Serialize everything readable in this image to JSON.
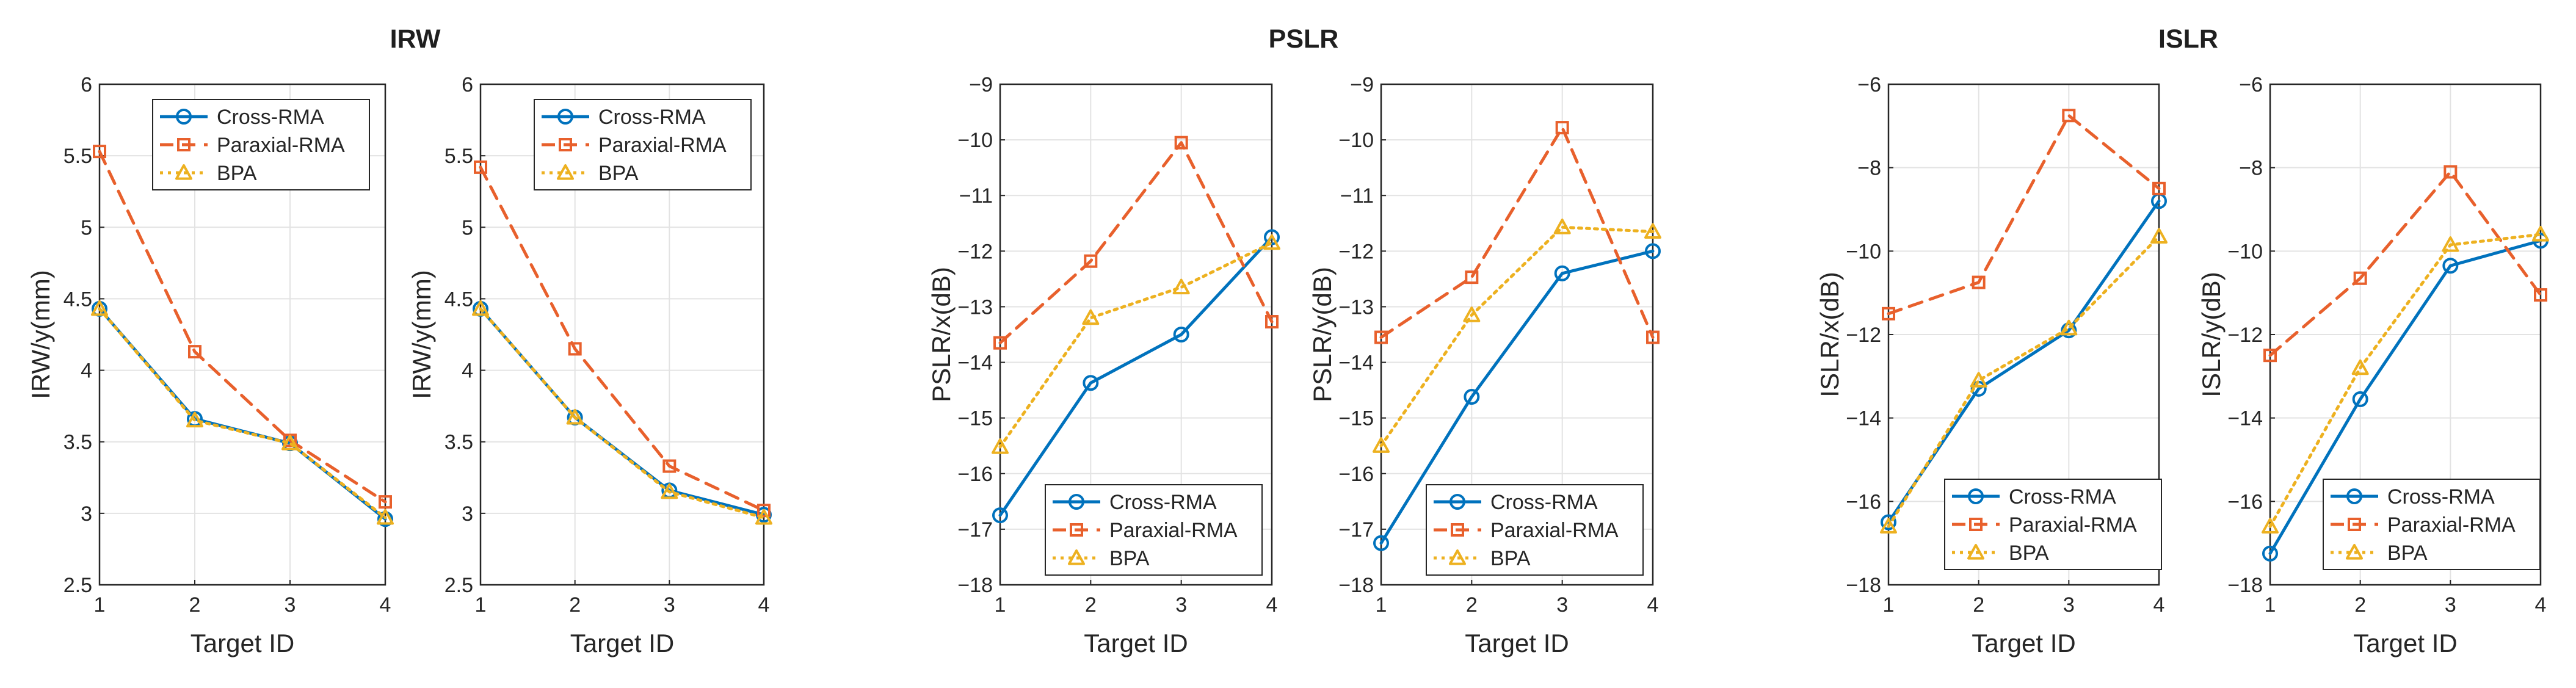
{
  "figure": {
    "group_titles": [
      "IRW",
      "PSLR",
      "ISLR"
    ],
    "colors": {
      "cross": "#0072BD",
      "paraxial": "#E8602C",
      "bpa": "#EDB120",
      "axis": "#262626",
      "grid": "#e3e3e3"
    },
    "legend_labels": [
      "Cross-RMA",
      "Paraxial-RMA",
      "BPA"
    ]
  },
  "chart_data": [
    {
      "type": "line",
      "id": "irw-x",
      "xlabel": "Target ID",
      "ylabel": "IRW/y(mm)",
      "categories": [
        "1",
        "2",
        "3",
        "4"
      ],
      "xticks": [
        "1",
        "2",
        "3",
        "4"
      ],
      "yticks": [
        "2.5",
        "3",
        "3.5",
        "4",
        "4.5",
        "5",
        "5.5",
        "6"
      ],
      "ylim": [
        2.5,
        6
      ],
      "grid": true,
      "legend_position": "top-right",
      "series": [
        {
          "name": "Cross-RMA",
          "values": [
            4.43,
            3.66,
            3.49,
            2.96
          ]
        },
        {
          "name": "Paraxial-RMA",
          "values": [
            5.53,
            4.13,
            3.51,
            3.08
          ]
        },
        {
          "name": "BPA",
          "values": [
            4.43,
            3.65,
            3.49,
            2.97
          ]
        }
      ]
    },
    {
      "type": "line",
      "id": "irw-y",
      "xlabel": "Target ID",
      "ylabel": "IRW/y(mm)",
      "categories": [
        "1",
        "2",
        "3",
        "4"
      ],
      "xticks": [
        "1",
        "2",
        "3",
        "4"
      ],
      "yticks": [
        "2.5",
        "3",
        "3.5",
        "4",
        "4.5",
        "5",
        "5.5",
        "6"
      ],
      "ylim": [
        2.5,
        6
      ],
      "grid": true,
      "legend_position": "top-right",
      "series": [
        {
          "name": "Cross-RMA",
          "values": [
            4.43,
            3.67,
            3.16,
            2.99
          ]
        },
        {
          "name": "Paraxial-RMA",
          "values": [
            5.42,
            4.15,
            3.33,
            3.02
          ]
        },
        {
          "name": "BPA",
          "values": [
            4.43,
            3.67,
            3.15,
            2.97
          ]
        }
      ]
    },
    {
      "type": "line",
      "id": "pslr-x",
      "xlabel": "Target ID",
      "ylabel": "PSLR/x(dB)",
      "categories": [
        "1",
        "2",
        "3",
        "4"
      ],
      "xticks": [
        "1",
        "2",
        "3",
        "4"
      ],
      "yticks": [
        "−18",
        "−17",
        "−16",
        "−15",
        "−14",
        "−13",
        "−12",
        "−11",
        "−10",
        "−9"
      ],
      "ylim": [
        -18,
        -9
      ],
      "grid": true,
      "legend_position": "bottom-right",
      "series": [
        {
          "name": "Cross-RMA",
          "values": [
            -16.75,
            -14.37,
            -13.5,
            -11.75
          ]
        },
        {
          "name": "Paraxial-RMA",
          "values": [
            -13.65,
            -12.18,
            -10.05,
            -13.27
          ]
        },
        {
          "name": "BPA",
          "values": [
            -15.52,
            -13.2,
            -12.65,
            -11.85
          ]
        }
      ]
    },
    {
      "type": "line",
      "id": "pslr-y",
      "xlabel": "Target ID",
      "ylabel": "PSLR/y(dB)",
      "categories": [
        "1",
        "2",
        "3",
        "4"
      ],
      "xticks": [
        "1",
        "2",
        "3",
        "4"
      ],
      "yticks": [
        "−18",
        "−17",
        "−16",
        "−15",
        "−14",
        "−13",
        "−12",
        "−11",
        "−10",
        "−9"
      ],
      "ylim": [
        -18,
        -9
      ],
      "grid": true,
      "legend_position": "bottom-right",
      "series": [
        {
          "name": "Cross-RMA",
          "values": [
            -17.25,
            -14.62,
            -12.4,
            -12.0
          ]
        },
        {
          "name": "Paraxial-RMA",
          "values": [
            -13.55,
            -12.47,
            -9.78,
            -13.55
          ]
        },
        {
          "name": "BPA",
          "values": [
            -15.5,
            -13.15,
            -11.57,
            -11.65
          ]
        }
      ]
    },
    {
      "type": "line",
      "id": "islr-x",
      "xlabel": "Target ID",
      "ylabel": "ISLR/x(dB)",
      "categories": [
        "1",
        "2",
        "3",
        "4"
      ],
      "xticks": [
        "1",
        "2",
        "3",
        "4"
      ],
      "yticks": [
        "−18",
        "−16",
        "−14",
        "−12",
        "−10",
        "−8",
        "−6"
      ],
      "ylim": [
        -18,
        -6
      ],
      "grid": true,
      "legend_position": "bottom-right",
      "series": [
        {
          "name": "Cross-RMA",
          "values": [
            -16.5,
            -13.3,
            -11.9,
            -8.8
          ]
        },
        {
          "name": "Paraxial-RMA",
          "values": [
            -11.5,
            -10.75,
            -6.75,
            -8.5
          ]
        },
        {
          "name": "BPA",
          "values": [
            -16.6,
            -13.1,
            -11.85,
            -9.65
          ]
        }
      ]
    },
    {
      "type": "line",
      "id": "islr-y",
      "xlabel": "Target ID",
      "ylabel": "ISLR/y(dB)",
      "categories": [
        "1",
        "2",
        "3",
        "4"
      ],
      "xticks": [
        "1",
        "2",
        "3",
        "4"
      ],
      "yticks": [
        "−18",
        "−16",
        "−14",
        "−12",
        "−10",
        "−8",
        "−6"
      ],
      "ylim": [
        -18,
        -6
      ],
      "grid": true,
      "legend_position": "bottom-right",
      "series": [
        {
          "name": "Cross-RMA",
          "values": [
            -17.25,
            -13.55,
            -10.35,
            -9.75
          ]
        },
        {
          "name": "Paraxial-RMA",
          "values": [
            -12.5,
            -10.65,
            -8.1,
            -11.05
          ]
        },
        {
          "name": "BPA",
          "values": [
            -16.6,
            -12.8,
            -9.85,
            -9.6
          ]
        }
      ]
    }
  ]
}
